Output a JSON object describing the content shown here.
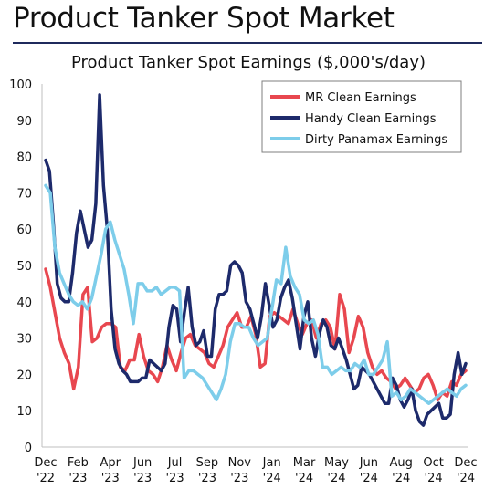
{
  "header": {
    "title": "Product Tanker Spot Market"
  },
  "chart_data": {
    "type": "line",
    "title": "Product Tanker Spot Earnings ($,000's/day)",
    "xlabel": "",
    "ylabel": "",
    "ylim": [
      0,
      100
    ],
    "yticks": [
      0,
      10,
      20,
      30,
      40,
      50,
      60,
      70,
      80,
      90,
      100
    ],
    "grid": false,
    "legend_position": "top-right",
    "x_tick_labels": [
      [
        "Dec",
        "'22"
      ],
      [
        "Feb",
        "'23"
      ],
      [
        "Apr",
        "'23"
      ],
      [
        "Jun",
        "'23"
      ],
      [
        "Jul",
        "'23"
      ],
      [
        "Sep",
        "'23"
      ],
      [
        "Nov",
        "'23"
      ],
      [
        "Jan",
        "'24"
      ],
      [
        "Mar",
        "'24"
      ],
      [
        "May",
        "'24"
      ],
      [
        "Jun",
        "'24"
      ],
      [
        "Aug",
        "'24"
      ],
      [
        "Oct",
        "'24"
      ],
      [
        "Dec",
        "'24"
      ]
    ],
    "series": [
      {
        "name": "MR Clean Earnings",
        "color": "#e8474f",
        "values": [
          49,
          44,
          37,
          30,
          26,
          23,
          16,
          22,
          42,
          44,
          29,
          30,
          33,
          34,
          34,
          33,
          22,
          21,
          24,
          24,
          31,
          25,
          21,
          20,
          18,
          22,
          28,
          24,
          21,
          26,
          30,
          31,
          28,
          27,
          26,
          23,
          22,
          25,
          28,
          33,
          35,
          37,
          33,
          33,
          36,
          31,
          22,
          23,
          36,
          37,
          36,
          35,
          34,
          38,
          34,
          31,
          34,
          35,
          30,
          34,
          35,
          33,
          27,
          42,
          38,
          26,
          30,
          36,
          33,
          26,
          22,
          20,
          21,
          19,
          18,
          16,
          17,
          19,
          17,
          15,
          16,
          19,
          20,
          17,
          13,
          15,
          14,
          18,
          17,
          20,
          21
        ]
      },
      {
        "name": "Handy Clean Earnings",
        "color": "#1d2a6b",
        "values": [
          79,
          76,
          62,
          45,
          41,
          40,
          40,
          48,
          59,
          65,
          60,
          55,
          57,
          67,
          97,
          72,
          60,
          38,
          27,
          23,
          21,
          20,
          18,
          18,
          18,
          19,
          19,
          24,
          23,
          22,
          21,
          23,
          33,
          39,
          38,
          29,
          37,
          44,
          33,
          28,
          29,
          32,
          25,
          25,
          38,
          42,
          42,
          43,
          50,
          51,
          50,
          48,
          40,
          38,
          34,
          30,
          36,
          45,
          39,
          33,
          35,
          41,
          44,
          46,
          41,
          34,
          27,
          36,
          40,
          30,
          25,
          31,
          35,
          33,
          28,
          27,
          30,
          27,
          24,
          20,
          16,
          17,
          22,
          21,
          20,
          18,
          16,
          14,
          12,
          12,
          19,
          17,
          13,
          11,
          13,
          16,
          10,
          7,
          6,
          9,
          10,
          11,
          12,
          8,
          8,
          9,
          20,
          26,
          20,
          23
        ]
      },
      {
        "name": "Dirty Panamax Earnings",
        "color": "#7dcdea",
        "values": [
          72,
          70,
          55,
          48,
          45,
          42,
          40,
          39,
          40,
          38,
          41,
          47,
          53,
          60,
          62,
          57,
          53,
          49,
          42,
          34,
          45,
          45,
          43,
          43,
          44,
          42,
          43,
          44,
          44,
          43,
          19,
          21,
          21,
          20,
          19,
          17,
          15,
          13,
          16,
          20,
          29,
          34,
          34,
          33,
          33,
          30,
          28,
          29,
          30,
          38,
          46,
          45,
          55,
          47,
          44,
          42,
          35,
          34,
          35,
          31,
          22,
          22,
          20,
          21,
          22,
          21,
          21,
          23,
          22,
          24,
          20,
          20,
          22,
          24,
          29,
          14,
          15,
          13,
          14,
          16,
          15,
          14,
          13,
          12,
          13,
          14,
          15,
          16,
          15,
          14,
          16,
          17
        ]
      }
    ]
  }
}
